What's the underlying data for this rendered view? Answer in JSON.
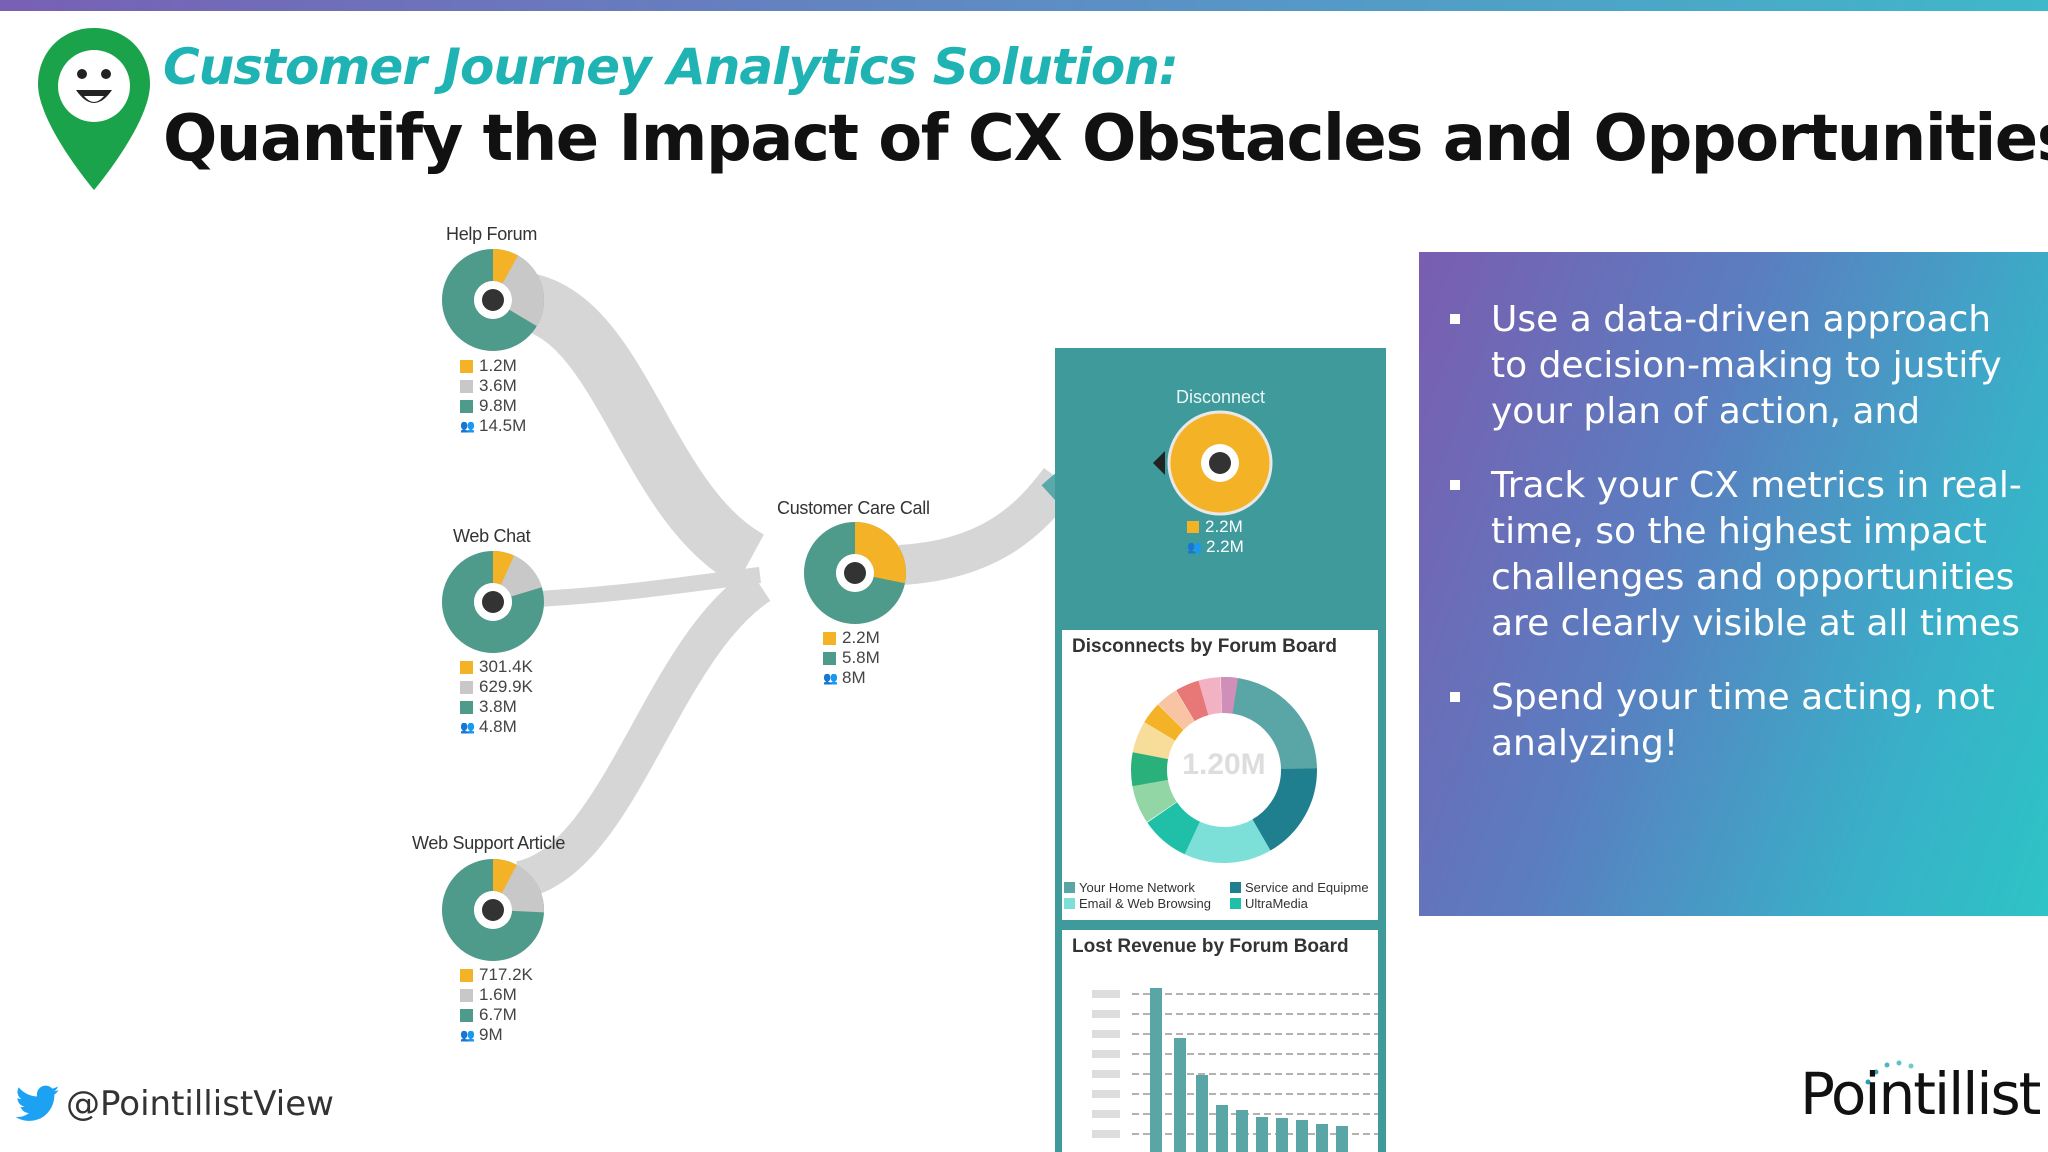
{
  "header": {
    "subtitle": "Customer Journey Analytics Solution:",
    "title": "Quantify the Impact of CX Obstacles and Opportunities"
  },
  "colors": {
    "accent_teal": "#1fb3b4",
    "logo_green": "#1aa34a",
    "donut_yellow": "#f4b227",
    "donut_gray": "#c8c8c8",
    "donut_teal": "#4e9a8b",
    "panel_teal": "#3f9a9c"
  },
  "journey": {
    "help_forum": {
      "label": "Help Forum",
      "v1": "1.2M",
      "v2": "3.6M",
      "v3": "9.8M",
      "people": "14.5M"
    },
    "web_chat": {
      "label": "Web Chat",
      "v1": "301.4K",
      "v2": "629.9K",
      "v3": "3.8M",
      "people": "4.8M"
    },
    "web_support_article": {
      "label": "Web Support Article",
      "v1": "717.2K",
      "v2": "1.6M",
      "v3": "6.7M",
      "people": "9M"
    },
    "customer_care_call": {
      "label": "Customer Care Call",
      "v1": "2.2M",
      "v3": "5.8M",
      "people": "8M"
    },
    "disconnect": {
      "label": "Disconnect",
      "v1": "2.2M",
      "people": "2.2M"
    }
  },
  "panel": {
    "disconnects_title": "Disconnects by Forum Board",
    "donut_center": "1.20M",
    "legend": [
      "Your Home Network",
      "Service and Equipme",
      "Email & Web Browsing",
      "UltraMedia"
    ],
    "lost_revenue_title": "Lost Revenue by Forum Board"
  },
  "bullets": [
    "Use a data-driven approach to decision-making to justify your plan of action, and",
    "Track your CX metrics in real-time, so the highest impact challenges and opportunities are clearly visible at all times",
    "Spend your time acting, not analyzing!"
  ],
  "footer": {
    "twitter_icon": "twitter-bird-icon",
    "twitter_handle": "@PointillistView",
    "brand": "Pointillist"
  }
}
